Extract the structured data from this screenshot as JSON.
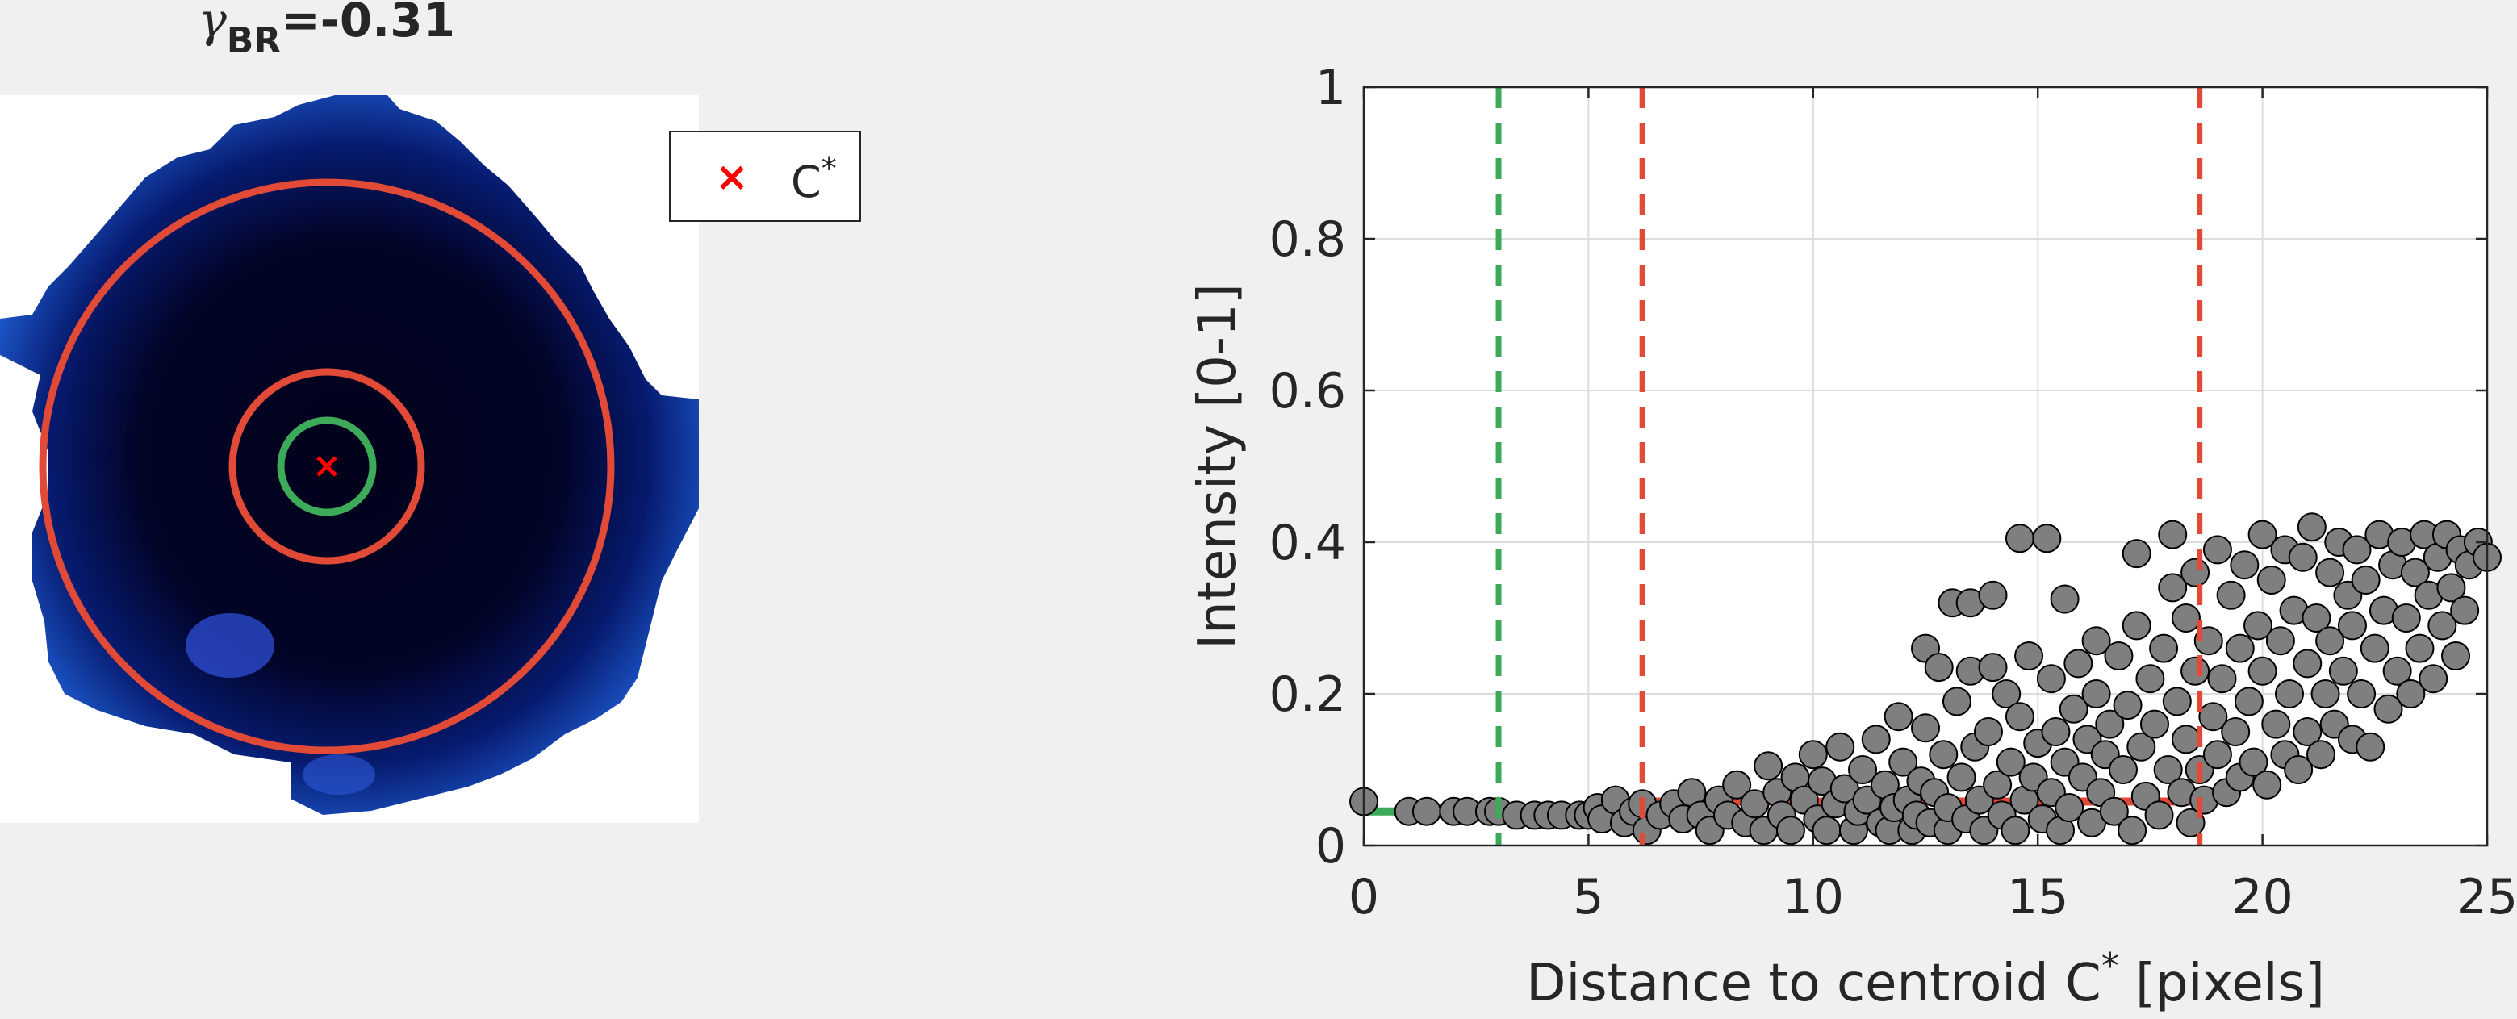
{
  "left_panel": {
    "title": {
      "symbol": "γ",
      "subscript": "BR",
      "value": "=-0.31"
    },
    "legend": {
      "marker": "×",
      "label": "C",
      "superscript": "*"
    },
    "image_description_icon": "pixel-image-blue-cell"
  },
  "chart_data": {
    "type": "scatter",
    "xlabel": "Distance to centroid C* [pixels]",
    "xlabel_parts": {
      "main": "Distance to centroid C",
      "sup": "*",
      "rest": " [pixels]"
    },
    "ylabel": "Intensity [0-1]",
    "xlim": [
      0,
      25
    ],
    "ylim": [
      0,
      1
    ],
    "xticks": [
      "0",
      "5",
      "10",
      "15",
      "20",
      "25"
    ],
    "yticks": [
      "0",
      "0.2",
      "0.4",
      "0.6",
      "0.8",
      "1"
    ],
    "grid": true,
    "colors": {
      "points": "#7f7f7f",
      "green": "#3daa5a",
      "red": "#e04a36"
    },
    "vlines": [
      {
        "x": 3.0,
        "color": "green",
        "style": "dashed"
      },
      {
        "x": 6.2,
        "color": "red",
        "style": "dashed"
      },
      {
        "x": 18.6,
        "color": "red",
        "style": "dashed"
      }
    ],
    "hsegments": [
      {
        "x0": 0,
        "x1": 3.0,
        "y": 0.045,
        "color": "green"
      },
      {
        "x0": 6.2,
        "x1": 18.6,
        "y": 0.058,
        "color": "red"
      }
    ],
    "points": [
      [
        0.0,
        0.058
      ],
      [
        1.0,
        0.045
      ],
      [
        1.4,
        0.045
      ],
      [
        2.0,
        0.045
      ],
      [
        2.3,
        0.045
      ],
      [
        2.8,
        0.045
      ],
      [
        3.0,
        0.045
      ],
      [
        3.4,
        0.04
      ],
      [
        3.8,
        0.04
      ],
      [
        4.1,
        0.04
      ],
      [
        4.4,
        0.04
      ],
      [
        4.8,
        0.04
      ],
      [
        5.0,
        0.04
      ],
      [
        5.2,
        0.05
      ],
      [
        5.3,
        0.035
      ],
      [
        5.6,
        0.06
      ],
      [
        5.8,
        0.03
      ],
      [
        6.0,
        0.045
      ],
      [
        6.2,
        0.055
      ],
      [
        6.3,
        0.02
      ],
      [
        6.6,
        0.04
      ],
      [
        6.9,
        0.055
      ],
      [
        7.1,
        0.035
      ],
      [
        7.3,
        0.07
      ],
      [
        7.5,
        0.04
      ],
      [
        7.7,
        0.02
      ],
      [
        7.9,
        0.06
      ],
      [
        8.1,
        0.04
      ],
      [
        8.3,
        0.08
      ],
      [
        8.5,
        0.03
      ],
      [
        8.7,
        0.055
      ],
      [
        8.9,
        0.02
      ],
      [
        9.0,
        0.105
      ],
      [
        9.2,
        0.07
      ],
      [
        9.3,
        0.04
      ],
      [
        9.5,
        0.02
      ],
      [
        9.6,
        0.09
      ],
      [
        9.8,
        0.06
      ],
      [
        10.0,
        0.12
      ],
      [
        10.1,
        0.035
      ],
      [
        10.2,
        0.085
      ],
      [
        10.3,
        0.02
      ],
      [
        10.5,
        0.055
      ],
      [
        10.6,
        0.13
      ],
      [
        10.7,
        0.075
      ],
      [
        10.9,
        0.02
      ],
      [
        11.0,
        0.045
      ],
      [
        11.1,
        0.1
      ],
      [
        11.2,
        0.06
      ],
      [
        11.4,
        0.14
      ],
      [
        11.5,
        0.03
      ],
      [
        11.6,
        0.08
      ],
      [
        11.7,
        0.02
      ],
      [
        11.8,
        0.05
      ],
      [
        11.9,
        0.17
      ],
      [
        12.0,
        0.11
      ],
      [
        12.1,
        0.06
      ],
      [
        12.2,
        0.02
      ],
      [
        12.3,
        0.04
      ],
      [
        12.4,
        0.085
      ],
      [
        12.5,
        0.26
      ],
      [
        12.5,
        0.155
      ],
      [
        12.6,
        0.03
      ],
      [
        12.7,
        0.07
      ],
      [
        12.8,
        0.235
      ],
      [
        12.9,
        0.12
      ],
      [
        13.0,
        0.02
      ],
      [
        13.0,
        0.05
      ],
      [
        13.1,
        0.32
      ],
      [
        13.2,
        0.19
      ],
      [
        13.3,
        0.09
      ],
      [
        13.4,
        0.035
      ],
      [
        13.5,
        0.32
      ],
      [
        13.5,
        0.23
      ],
      [
        13.6,
        0.13
      ],
      [
        13.7,
        0.06
      ],
      [
        13.8,
        0.02
      ],
      [
        13.9,
        0.15
      ],
      [
        14.0,
        0.33
      ],
      [
        14.0,
        0.235
      ],
      [
        14.1,
        0.08
      ],
      [
        14.2,
        0.04
      ],
      [
        14.3,
        0.2
      ],
      [
        14.4,
        0.11
      ],
      [
        14.5,
        0.02
      ],
      [
        14.6,
        0.405
      ],
      [
        14.6,
        0.17
      ],
      [
        14.7,
        0.06
      ],
      [
        14.8,
        0.25
      ],
      [
        14.9,
        0.09
      ],
      [
        15.0,
        0.135
      ],
      [
        15.1,
        0.035
      ],
      [
        15.2,
        0.405
      ],
      [
        15.3,
        0.22
      ],
      [
        15.3,
        0.07
      ],
      [
        15.4,
        0.15
      ],
      [
        15.5,
        0.02
      ],
      [
        15.6,
        0.325
      ],
      [
        15.6,
        0.11
      ],
      [
        15.7,
        0.05
      ],
      [
        15.8,
        0.18
      ],
      [
        15.9,
        0.24
      ],
      [
        16.0,
        0.09
      ],
      [
        16.1,
        0.14
      ],
      [
        16.2,
        0.03
      ],
      [
        16.3,
        0.27
      ],
      [
        16.3,
        0.2
      ],
      [
        16.4,
        0.07
      ],
      [
        16.5,
        0.12
      ],
      [
        16.6,
        0.16
      ],
      [
        16.7,
        0.045
      ],
      [
        16.8,
        0.25
      ],
      [
        16.9,
        0.1
      ],
      [
        17.0,
        0.185
      ],
      [
        17.1,
        0.02
      ],
      [
        17.2,
        0.385
      ],
      [
        17.2,
        0.29
      ],
      [
        17.3,
        0.13
      ],
      [
        17.4,
        0.065
      ],
      [
        17.5,
        0.22
      ],
      [
        17.6,
        0.16
      ],
      [
        17.7,
        0.04
      ],
      [
        17.8,
        0.26
      ],
      [
        17.9,
        0.1
      ],
      [
        18.0,
        0.41
      ],
      [
        18.0,
        0.34
      ],
      [
        18.1,
        0.19
      ],
      [
        18.2,
        0.07
      ],
      [
        18.3,
        0.3
      ],
      [
        18.3,
        0.14
      ],
      [
        18.4,
        0.03
      ],
      [
        18.5,
        0.36
      ],
      [
        18.5,
        0.23
      ],
      [
        18.6,
        0.1
      ],
      [
        18.7,
        0.06
      ],
      [
        18.8,
        0.27
      ],
      [
        18.9,
        0.17
      ],
      [
        19.0,
        0.39
      ],
      [
        19.0,
        0.12
      ],
      [
        19.1,
        0.22
      ],
      [
        19.2,
        0.07
      ],
      [
        19.3,
        0.33
      ],
      [
        19.4,
        0.15
      ],
      [
        19.5,
        0.26
      ],
      [
        19.5,
        0.09
      ],
      [
        19.6,
        0.37
      ],
      [
        19.7,
        0.19
      ],
      [
        19.8,
        0.11
      ],
      [
        19.9,
        0.29
      ],
      [
        20.0,
        0.41
      ],
      [
        20.0,
        0.23
      ],
      [
        20.1,
        0.08
      ],
      [
        20.2,
        0.35
      ],
      [
        20.3,
        0.16
      ],
      [
        20.4,
        0.27
      ],
      [
        20.5,
        0.39
      ],
      [
        20.5,
        0.12
      ],
      [
        20.6,
        0.2
      ],
      [
        20.7,
        0.31
      ],
      [
        20.8,
        0.1
      ],
      [
        20.9,
        0.38
      ],
      [
        21.0,
        0.24
      ],
      [
        21.0,
        0.15
      ],
      [
        21.1,
        0.42
      ],
      [
        21.2,
        0.3
      ],
      [
        21.3,
        0.12
      ],
      [
        21.4,
        0.2
      ],
      [
        21.5,
        0.36
      ],
      [
        21.5,
        0.27
      ],
      [
        21.6,
        0.16
      ],
      [
        21.7,
        0.4
      ],
      [
        21.8,
        0.23
      ],
      [
        21.9,
        0.33
      ],
      [
        22.0,
        0.14
      ],
      [
        22.0,
        0.29
      ],
      [
        22.1,
        0.39
      ],
      [
        22.2,
        0.2
      ],
      [
        22.3,
        0.35
      ],
      [
        22.4,
        0.13
      ],
      [
        22.5,
        0.26
      ],
      [
        22.6,
        0.41
      ],
      [
        22.7,
        0.31
      ],
      [
        22.8,
        0.18
      ],
      [
        22.9,
        0.37
      ],
      [
        23.0,
        0.23
      ],
      [
        23.1,
        0.4
      ],
      [
        23.2,
        0.3
      ],
      [
        23.3,
        0.2
      ],
      [
        23.4,
        0.36
      ],
      [
        23.5,
        0.26
      ],
      [
        23.6,
        0.41
      ],
      [
        23.7,
        0.33
      ],
      [
        23.8,
        0.22
      ],
      [
        23.9,
        0.38
      ],
      [
        24.0,
        0.29
      ],
      [
        24.1,
        0.41
      ],
      [
        24.2,
        0.34
      ],
      [
        24.3,
        0.25
      ],
      [
        24.4,
        0.39
      ],
      [
        24.5,
        0.31
      ],
      [
        24.6,
        0.37
      ],
      [
        24.8,
        0.4
      ],
      [
        25.0,
        0.38
      ]
    ]
  }
}
